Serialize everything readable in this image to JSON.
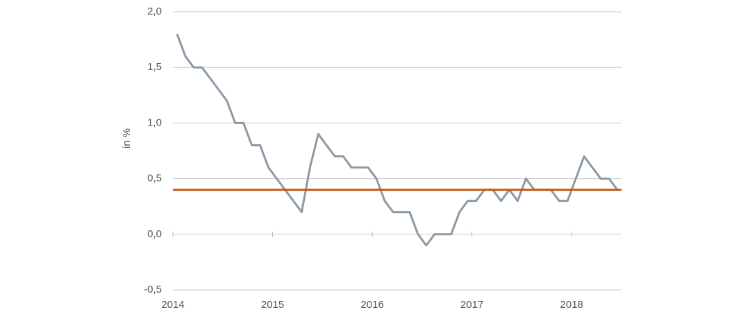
{
  "chart_data": {
    "type": "line",
    "y_label": "in %",
    "categories": [
      "2014",
      null,
      null,
      null,
      null,
      null,
      null,
      null,
      null,
      null,
      null,
      null,
      "2015",
      null,
      null,
      null,
      null,
      null,
      null,
      null,
      null,
      null,
      null,
      null,
      "2016",
      null,
      null,
      null,
      null,
      null,
      null,
      null,
      null,
      null,
      null,
      null,
      "2017",
      null,
      null,
      null,
      null,
      null,
      null,
      null,
      null,
      null,
      null,
      null,
      "2018",
      null,
      null,
      null,
      null,
      null
    ],
    "series": [
      {
        "color": "#8c99a6",
        "values": [
          1.8,
          1.6,
          1.5,
          1.5,
          1.4,
          1.3,
          1.2,
          1.0,
          1.0,
          0.8,
          0.8,
          0.6,
          0.5,
          0.4,
          0.3,
          0.2,
          0.6,
          0.9,
          0.8,
          0.7,
          0.7,
          0.6,
          0.6,
          0.6,
          0.5,
          0.3,
          0.2,
          0.2,
          0.2,
          0.0,
          -0.1,
          0.0,
          0.0,
          0.0,
          0.2,
          0.3,
          0.3,
          0.4,
          0.4,
          0.3,
          0.4,
          0.3,
          0.5,
          0.4,
          0.4,
          0.4,
          0.3,
          0.3,
          0.5,
          0.7,
          0.6,
          0.5,
          0.5,
          0.4
        ]
      }
    ],
    "reference_line": {
      "value": 0.4,
      "color": "#c55a11"
    },
    "ylim": [
      -0.5,
      2.0
    ],
    "yticks": [
      {
        "value": -0.5,
        "label": "-0,5"
      },
      {
        "value": 0,
        "label": "0,0"
      },
      {
        "value": 0.5,
        "label": "0,5"
      },
      {
        "value": 1.0,
        "label": "1,0"
      },
      {
        "value": 1.5,
        "label": "1,5"
      },
      {
        "value": 2.0,
        "label": "2,0"
      }
    ],
    "grid": true
  }
}
